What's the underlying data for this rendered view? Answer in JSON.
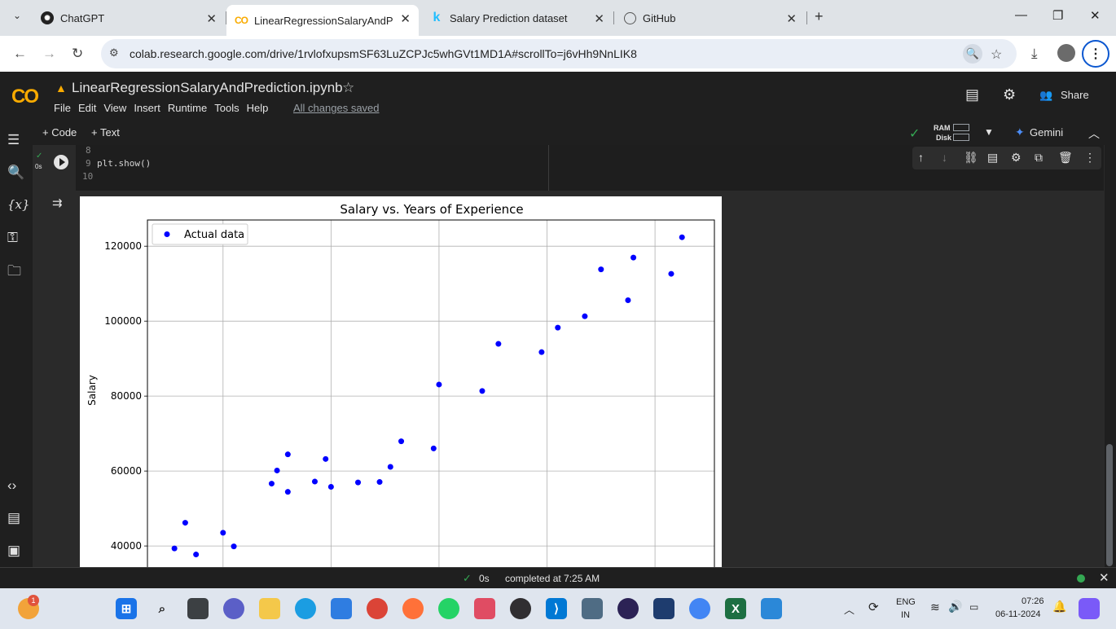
{
  "browser": {
    "tabs": [
      {
        "title": "ChatGPT",
        "active": false
      },
      {
        "title": "LinearRegressionSalaryAndPred",
        "active": true
      },
      {
        "title": "Salary Prediction dataset",
        "active": false
      },
      {
        "title": "GitHub",
        "active": false
      }
    ],
    "url": "colab.research.google.com/drive/1rvlofxupsmSF63LuZCPJc5whGVt1MD1A#scrollTo=j6vHh9NnLIK8"
  },
  "colab": {
    "logo": "CO",
    "notebook_title": "LinearRegressionSalaryAndPrediction.ipynb",
    "menu": [
      "File",
      "Edit",
      "View",
      "Insert",
      "Runtime",
      "Tools",
      "Help"
    ],
    "save_status": "All changes saved",
    "share_label": "Share",
    "add_code": "+ Code",
    "add_text": "+ Text",
    "ram_label": "RAM",
    "disk_label": "Disk",
    "gemini_label": "Gemini",
    "cell_exec_time": "0s"
  },
  "code_lines": [
    {
      "num": "8",
      "text": ""
    },
    {
      "num": "9",
      "text": "plt.show()"
    },
    {
      "num": "10",
      "text": ""
    }
  ],
  "chart_data": {
    "type": "scatter",
    "title": "Salary vs. Years of Experience",
    "xlabel": "",
    "ylabel": "Salary",
    "legend": {
      "entries": [
        "Actual data"
      ],
      "placement": "top-left"
    },
    "grid": true,
    "color": "#0000ff",
    "x_ticks": [
      2,
      4,
      6,
      8,
      10
    ],
    "x_tick_labels": [
      "",
      "",
      "",
      "",
      ""
    ],
    "y_ticks": [
      40000,
      60000,
      80000,
      100000,
      120000
    ],
    "y_tick_labels": [
      "40000",
      "60000",
      "80000",
      "100000",
      "120000"
    ],
    "xlim": [
      0.6,
      11.1
    ],
    "ylim": [
      33500,
      127000
    ],
    "series": [
      {
        "points": [
          [
            1.1,
            39343
          ],
          [
            1.3,
            46205
          ],
          [
            1.5,
            37731
          ],
          [
            2.0,
            43525
          ],
          [
            2.2,
            39891
          ],
          [
            2.9,
            56642
          ],
          [
            3.0,
            60150
          ],
          [
            3.2,
            54445
          ],
          [
            3.2,
            64445
          ],
          [
            3.7,
            57189
          ],
          [
            3.9,
            63218
          ],
          [
            4.0,
            55794
          ],
          [
            4.5,
            56957
          ],
          [
            4.9,
            57081
          ],
          [
            5.1,
            61111
          ],
          [
            5.3,
            67938
          ],
          [
            5.9,
            66029
          ],
          [
            6.0,
            83088
          ],
          [
            6.8,
            81363
          ],
          [
            7.1,
            93940
          ],
          [
            7.9,
            91738
          ],
          [
            8.2,
            98273
          ],
          [
            8.7,
            101302
          ],
          [
            9.0,
            113812
          ],
          [
            9.5,
            105582
          ],
          [
            9.6,
            116969
          ],
          [
            10.3,
            112635
          ],
          [
            10.5,
            122391
          ]
        ]
      }
    ]
  },
  "status": {
    "exec_time": "0s",
    "completed": "completed at 7:25 AM"
  },
  "taskbar": {
    "notification_count": "1",
    "lang_top": "ENG",
    "lang_bottom": "IN",
    "time": "07:26",
    "date": "06-11-2024"
  }
}
